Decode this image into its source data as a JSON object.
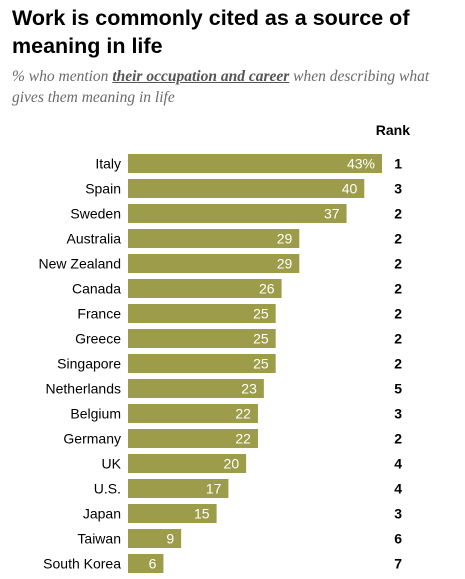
{
  "title": "Work is commonly cited as a source of meaning in life",
  "subtitle": {
    "prefix": "% who mention ",
    "emphasis": "their occupation and career",
    "suffix": " when describing what gives them meaning in life"
  },
  "rank_header": "Rank",
  "colors": {
    "bar": "#9c9c4a",
    "bar_label": "#ffffff",
    "text": "#000000",
    "subtitle": "#6b6b6b"
  },
  "chart_data": {
    "type": "bar",
    "orientation": "horizontal",
    "categories": [
      "Italy",
      "Spain",
      "Sweden",
      "Australia",
      "New Zealand",
      "Canada",
      "France",
      "Greece",
      "Singapore",
      "Netherlands",
      "Belgium",
      "Germany",
      "UK",
      "U.S.",
      "Japan",
      "Taiwan",
      "South Korea"
    ],
    "values": [
      43,
      40,
      37,
      29,
      29,
      26,
      25,
      25,
      25,
      23,
      22,
      22,
      20,
      17,
      15,
      9,
      6
    ],
    "value_labels": [
      "43%",
      "40",
      "37",
      "29",
      "29",
      "26",
      "25",
      "25",
      "25",
      "23",
      "22",
      "22",
      "20",
      "17",
      "15",
      "9",
      "6"
    ],
    "ranks": [
      "1",
      "3",
      "2",
      "2",
      "2",
      "2",
      "2",
      "2",
      "2",
      "5",
      "3",
      "2",
      "4",
      "4",
      "3",
      "6",
      "7"
    ],
    "xlim": [
      0,
      43
    ],
    "grid": false,
    "legend": "none"
  }
}
